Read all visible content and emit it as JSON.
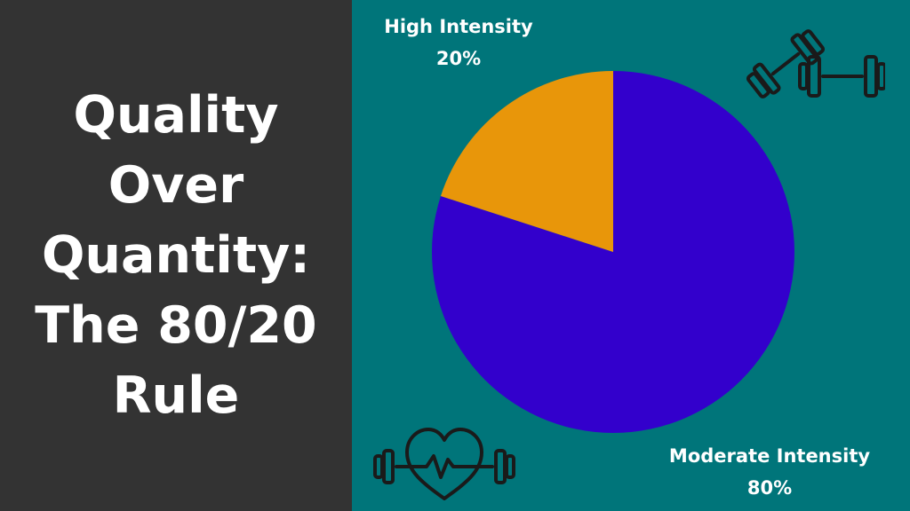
{
  "title": {
    "lines": [
      "Quality",
      "Over",
      "Quantity:",
      "The 80/20",
      "Rule"
    ]
  },
  "labels": {
    "high": {
      "name": "High Intensity",
      "value": "20%"
    },
    "moderate": {
      "name": "Moderate Intensity",
      "value": "80%"
    }
  },
  "colors": {
    "left_background": "#333333",
    "right_background": "#00757a",
    "moderate_slice": "#3300cc",
    "high_slice": "#e8960a",
    "text": "#ffffff",
    "icon_stroke": "#1a1a1a"
  },
  "icons": [
    "dumbbells-icon",
    "heart-dumbbell-icon"
  ],
  "chart_data": {
    "type": "pie",
    "slices": [
      {
        "label": "Moderate Intensity",
        "value": 80,
        "color": "#3300cc"
      },
      {
        "label": "High Intensity",
        "value": 20,
        "color": "#e8960a"
      }
    ],
    "start_angle": "top, clockwise from 12 o'clock (Moderate first)",
    "legend": "none"
  }
}
